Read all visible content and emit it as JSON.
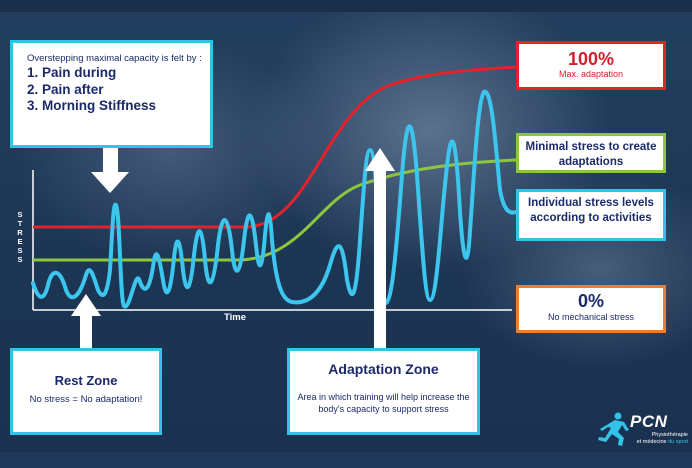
{
  "colors": {
    "max_curve": "#e5222b",
    "min_curve": "#8cc63f",
    "stress_curve": "#3cc6ee",
    "arrow": "#ffffff",
    "text": "#1a2a6a"
  },
  "overstep_box": {
    "intro": "Overstepping maximal capacity is felt by :",
    "items": [
      "1. Pain during",
      "2. Pain after",
      "3. Morning Stiffness"
    ]
  },
  "max_box": {
    "title": "100%",
    "subtitle": "Max. adaptation"
  },
  "min_box": {
    "text": "Minimal stress to create adaptations"
  },
  "individual_box": {
    "text": "Individual stress levels according to activities"
  },
  "zero_box": {
    "title": "0%",
    "subtitle": "No mechanical stress"
  },
  "rest_box": {
    "title": "Rest Zone",
    "desc": "No stress = No adaptation!"
  },
  "adaptation_box": {
    "title": "Adaptation Zone",
    "desc": "Area in which training will help increase the body's capacity to support stress"
  },
  "axes": {
    "y_label": "STRESS",
    "x_label": "Time"
  },
  "logo": {
    "name": "PCN",
    "line1": "Physiothérapie",
    "line2": "et médecine",
    "line2_accent": "du sport"
  }
}
